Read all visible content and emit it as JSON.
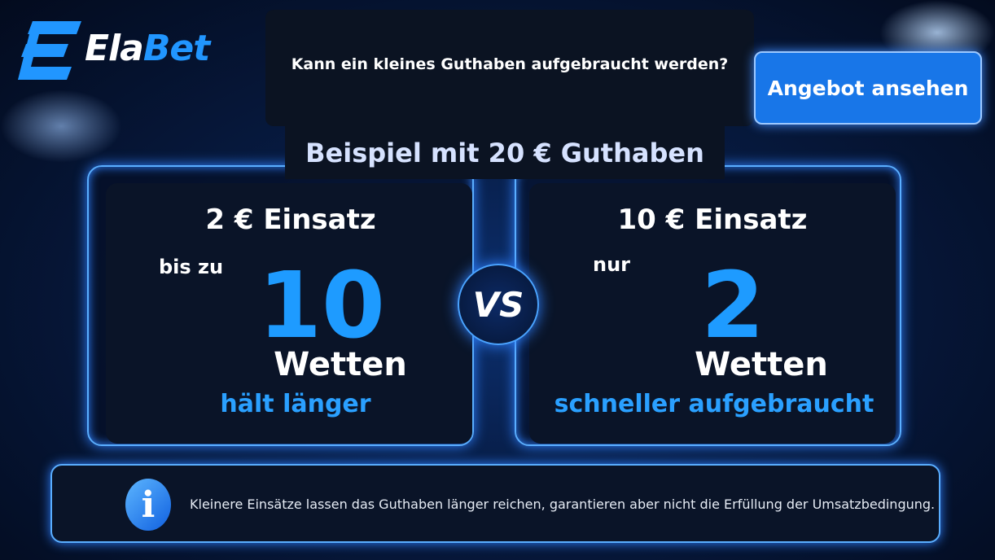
{
  "header": {
    "logo": {
      "start": "Ela",
      "end": "Bet"
    },
    "question": "Kann ein kleines Guthaben aufgebraucht werden?",
    "button": "Angebot ansehen"
  },
  "subtitle": "Beispiel mit 20 € Guthaben",
  "cards": [
    {
      "title": "2 € Einsatz",
      "prefix": "bis zu",
      "number": "10",
      "unit": "Wetten",
      "note": "hält länger"
    },
    {
      "title": "10 € Einsatz",
      "prefix": "nur",
      "number": "2",
      "unit": "Wetten",
      "note": "schneller aufgebraucht"
    }
  ],
  "vs": "VS",
  "info": {
    "icon": "i",
    "text": "Kleinere Einsätze lassen das Guthaben länger reichen, garantieren aber nicht die Erfüllung der Umsatzbedingung."
  }
}
